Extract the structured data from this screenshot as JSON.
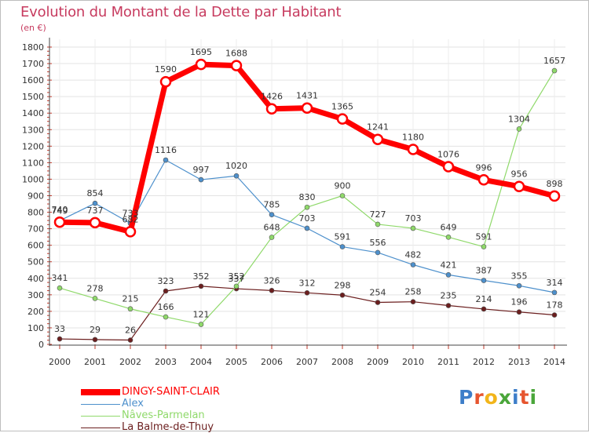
{
  "title": "Evolution du Montant de la Dette par Habitant",
  "unit": "(en €)",
  "logo": {
    "text": "ProXiti",
    "letters": [
      "P",
      "r",
      "o",
      "x",
      "i",
      "t",
      "i"
    ],
    "colors": [
      "#3d7ec9",
      "#e6552f",
      "#f2b51a",
      "#4aa63a",
      "#3d7ec9",
      "#e6552f",
      "#4aa63a"
    ]
  },
  "chart_data": {
    "type": "line",
    "x": [
      "2000",
      "2001",
      "2002",
      "2003",
      "2004",
      "2005",
      "2006",
      "2007",
      "2008",
      "2009",
      "2010",
      "2011",
      "2012",
      "2013",
      "2014"
    ],
    "ylim": [
      0,
      1800
    ],
    "yticks": [
      0,
      100,
      200,
      300,
      400,
      500,
      600,
      700,
      800,
      900,
      1000,
      1100,
      1200,
      1300,
      1400,
      1500,
      1600,
      1700,
      1800
    ],
    "grid": true,
    "legend_placement": "bottom-left",
    "series": [
      {
        "name": "DINGY-SAINT-CLAIR",
        "color": "#ff0000",
        "values": [
          740,
          737,
          682,
          1590,
          1695,
          1688,
          1426,
          1431,
          1365,
          1241,
          1180,
          1076,
          996,
          956,
          898
        ]
      },
      {
        "name": "Alex",
        "color": "#4d90cc",
        "values": [
          749,
          854,
          733,
          1116,
          997,
          1020,
          785,
          703,
          591,
          556,
          482,
          421,
          387,
          355,
          314
        ]
      },
      {
        "name": "Nâves-Parmelan",
        "color": "#8fd96a",
        "values": [
          341,
          278,
          215,
          166,
          121,
          352,
          648,
          830,
          900,
          727,
          703,
          649,
          591,
          1304,
          1657
        ]
      },
      {
        "name": "La Balme-de-Thuy",
        "color": "#6b1e1e",
        "values": [
          33,
          29,
          26,
          323,
          352,
          337,
          326,
          312,
          298,
          254,
          258,
          235,
          214,
          196,
          178
        ]
      }
    ]
  }
}
